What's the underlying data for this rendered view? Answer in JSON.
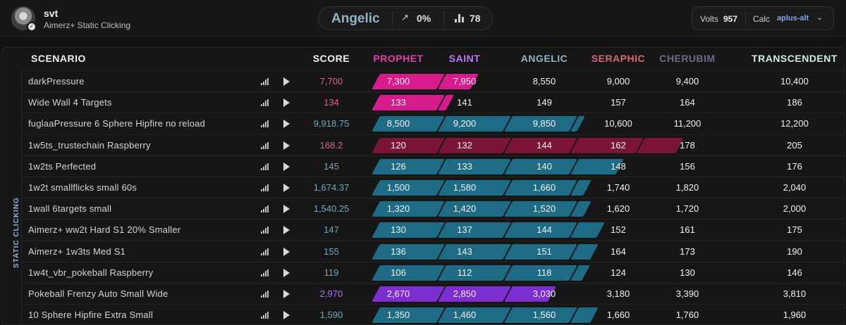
{
  "user": {
    "name": "svt",
    "playlist": "Aimerz+ Static Clicking",
    "avatar_icon": "user-avatar-icon",
    "badge_icon": "verified-badge-icon"
  },
  "rank": {
    "name": "Angelic",
    "trend": "0%",
    "count": "78",
    "trend_icon": "trend-up-arrow-icon",
    "count_icon": "bar-chart-icon"
  },
  "volts": {
    "label": "Volts",
    "value": "957"
  },
  "calc": {
    "label": "Calc",
    "value": "aplus-alt",
    "icon": "chevron-down-icon"
  },
  "category": "STATIC CLICKING",
  "columns": {
    "scenario": "SCENARIO",
    "score": "SCORE",
    "ranks": [
      {
        "name": "PROPHET",
        "color": "#e040a8"
      },
      {
        "name": "SAINT",
        "color": "#c27aff"
      },
      {
        "name": "ANGELIC",
        "color": "#8fb4c6"
      },
      {
        "name": "SERAPHIC",
        "color": "#d9647f"
      },
      {
        "name": "CHERUBIM",
        "color": "#6b6b86"
      },
      {
        "name": "TRANSCENDENT",
        "color": "#cfeee0"
      }
    ]
  },
  "colors": {
    "prophet": "#d81b8c",
    "saint": "#7d2ed1",
    "angelic": "#1d6b84",
    "seraphic": "#7a1535"
  },
  "rows": [
    {
      "scenario": "darkPressure",
      "score": "7,700",
      "score_color": "#e85a9a",
      "thresholds": [
        "7,300",
        "7,950",
        "8,550",
        "9,000",
        "9,400",
        "10,400"
      ],
      "bar_color": "#d81b8c",
      "progress": 1.5
    },
    {
      "scenario": "Wide Wall 4 Targets",
      "score": "134",
      "score_color": "#e85a9a",
      "thresholds": [
        "133",
        "141",
        "149",
        "157",
        "164",
        "186"
      ],
      "bar_color": "#d81b8c",
      "progress": 1.12
    },
    {
      "scenario": "fuglaaPressure 6 Sphere Hipfire no reload",
      "score": "9,918.75",
      "score_color": "#6fa8c0",
      "thresholds": [
        "8,500",
        "9,200",
        "9,850",
        "10,600",
        "11,200",
        "12,200"
      ],
      "bar_color": "#1d6b84",
      "progress": 3.1
    },
    {
      "scenario": "1w5ts_trustechain Raspberry",
      "score": "168.2",
      "score_color": "#d9647f",
      "thresholds": [
        "120",
        "132",
        "144",
        "162",
        "178",
        "205"
      ],
      "bar_color": "#7a1535",
      "progress": 4.6
    },
    {
      "scenario": "1w2ts Perfected",
      "score": "145",
      "score_color": "#6fa8c0",
      "thresholds": [
        "126",
        "133",
        "140",
        "148",
        "156",
        "176"
      ],
      "bar_color": "#1d6b84",
      "progress": 3.7
    },
    {
      "scenario": "1w2t smallflicks small 60s",
      "score": "1,674.37",
      "score_color": "#6fa8c0",
      "thresholds": [
        "1,500",
        "1,580",
        "1,660",
        "1,740",
        "1,820",
        "2,040"
      ],
      "bar_color": "#1d6b84",
      "progress": 3.2
    },
    {
      "scenario": "1wall 6targets small",
      "score": "1,540.25",
      "score_color": "#6fa8c0",
      "thresholds": [
        "1,320",
        "1,420",
        "1,520",
        "1,620",
        "1,720",
        "2,000"
      ],
      "bar_color": "#1d6b84",
      "progress": 3.2
    },
    {
      "scenario": "Aimerz+ ww2t Hard S1 20% Smaller",
      "score": "147",
      "score_color": "#6fa8c0",
      "thresholds": [
        "130",
        "137",
        "144",
        "152",
        "161",
        "175"
      ],
      "bar_color": "#1d6b84",
      "progress": 3.4
    },
    {
      "scenario": "Aimerz+ 1w3ts Med S1",
      "score": "155",
      "score_color": "#6fa8c0",
      "thresholds": [
        "136",
        "143",
        "151",
        "164",
        "173",
        "190"
      ],
      "bar_color": "#1d6b84",
      "progress": 3.3
    },
    {
      "scenario": "1w4t_vbr_pokeball Raspberry",
      "score": "119",
      "score_color": "#6fa8c0",
      "thresholds": [
        "106",
        "112",
        "118",
        "124",
        "130",
        "146"
      ],
      "bar_color": "#1d6b84",
      "progress": 3.17
    },
    {
      "scenario": "Pokeball Frenzy Auto Small Wide",
      "score": "2,970",
      "score_color": "#b06cf0",
      "thresholds": [
        "2,670",
        "2,850",
        "3,030",
        "3,180",
        "3,390",
        "3,810"
      ],
      "bar_color": "#7d2ed1",
      "progress": 2.67
    },
    {
      "scenario": "10 Sphere Hipfire Extra Small",
      "score": "1,590",
      "score_color": "#6fa8c0",
      "thresholds": [
        "1,350",
        "1,460",
        "1,560",
        "1,660",
        "1,760",
        "1,960"
      ],
      "bar_color": "#1d6b84",
      "progress": 3.3
    }
  ]
}
